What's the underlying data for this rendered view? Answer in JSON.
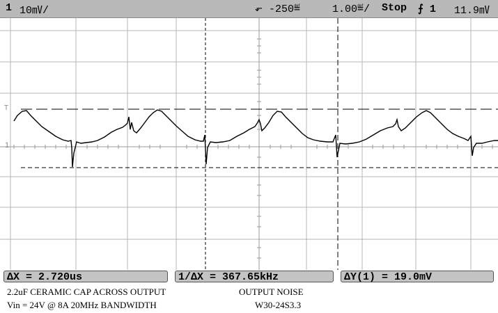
{
  "topbar": {
    "channel": "1",
    "volts_per_div": "10㎷/",
    "trigger_mark": "⬐",
    "delay": "-250≝",
    "time_per_div": "1.00≝/",
    "status": "Stop",
    "trigger_source": "⨍ 1",
    "trigger_level": "11.9㎷"
  },
  "markers": {
    "trigger_marker": "T",
    "channel_marker": "1"
  },
  "measurements": {
    "delta_x": "ΔX = 2.720us",
    "inverse_delta_x": "1/ΔX = 367.65kHz",
    "delta_y": "ΔY(1) = 19.0mV"
  },
  "caption": {
    "line1_left": "2.2uF CERAMIC CAP ACROSS OUTPUT",
    "line1_right": "OUTPUT NOISE",
    "line2_left": "Vin = 24V @ 8A   20MHz BANDWIDTH",
    "line2_right": "W30-24S3.3"
  },
  "colors": {
    "toolbar_bg": "#b9b9b9",
    "grid": "#b5b5b5",
    "trace": "#000000",
    "meas_box": "#c4c4c4"
  }
}
